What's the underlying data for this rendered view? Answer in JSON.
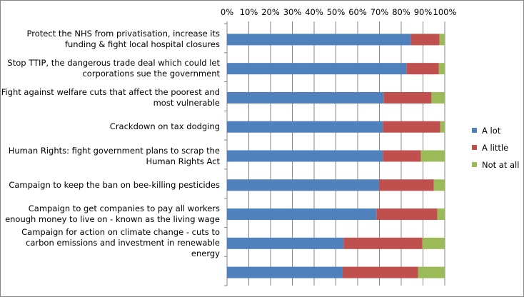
{
  "chart_data": {
    "type": "bar",
    "orientation": "horizontal",
    "stacked": "percent",
    "title": "",
    "xlabel": "",
    "ylabel": "",
    "xlim": [
      0,
      100
    ],
    "x_ticks": [
      "0%",
      "10%",
      "20%",
      "30%",
      "40%",
      "50%",
      "60%",
      "70%",
      "80%",
      "90%",
      "100%"
    ],
    "grid": true,
    "legend_position": "right",
    "categories": [
      "Protect the NHS from privatisation, increase its funding & fight local hospital closures",
      "Stop TTIP, the dangerous trade deal which could let corporations sue the government",
      "Fight against welfare cuts that affect the poorest and most vulnerable",
      "Crackdown on tax dodging",
      "Human Rights: fight government plans to scrap the Human Rights Act",
      "Campaign to keep the ban on bee-killing pesticides",
      "Campaign to get companies to pay all workers enough money to live on - known as the living wage",
      "Campaign for action on climate change - cuts to carbon emissions and investment in renewable energy",
      ""
    ],
    "series": [
      {
        "name": "A lot",
        "color": "#4f81bd",
        "values": [
          84.4,
          82.4,
          71.9,
          71.6,
          71.6,
          69.9,
          68.6,
          53.5,
          53.1
        ]
      },
      {
        "name": "A little",
        "color": "#c0504d",
        "values": [
          13.2,
          14.9,
          22.0,
          26.3,
          17.4,
          25.1,
          28.0,
          36.2,
          34.6
        ]
      },
      {
        "name": "Not at all",
        "color": "#9bbb59",
        "values": [
          2.4,
          2.7,
          6.1,
          2.1,
          11.0,
          5.0,
          3.4,
          10.3,
          12.3
        ]
      }
    ]
  }
}
